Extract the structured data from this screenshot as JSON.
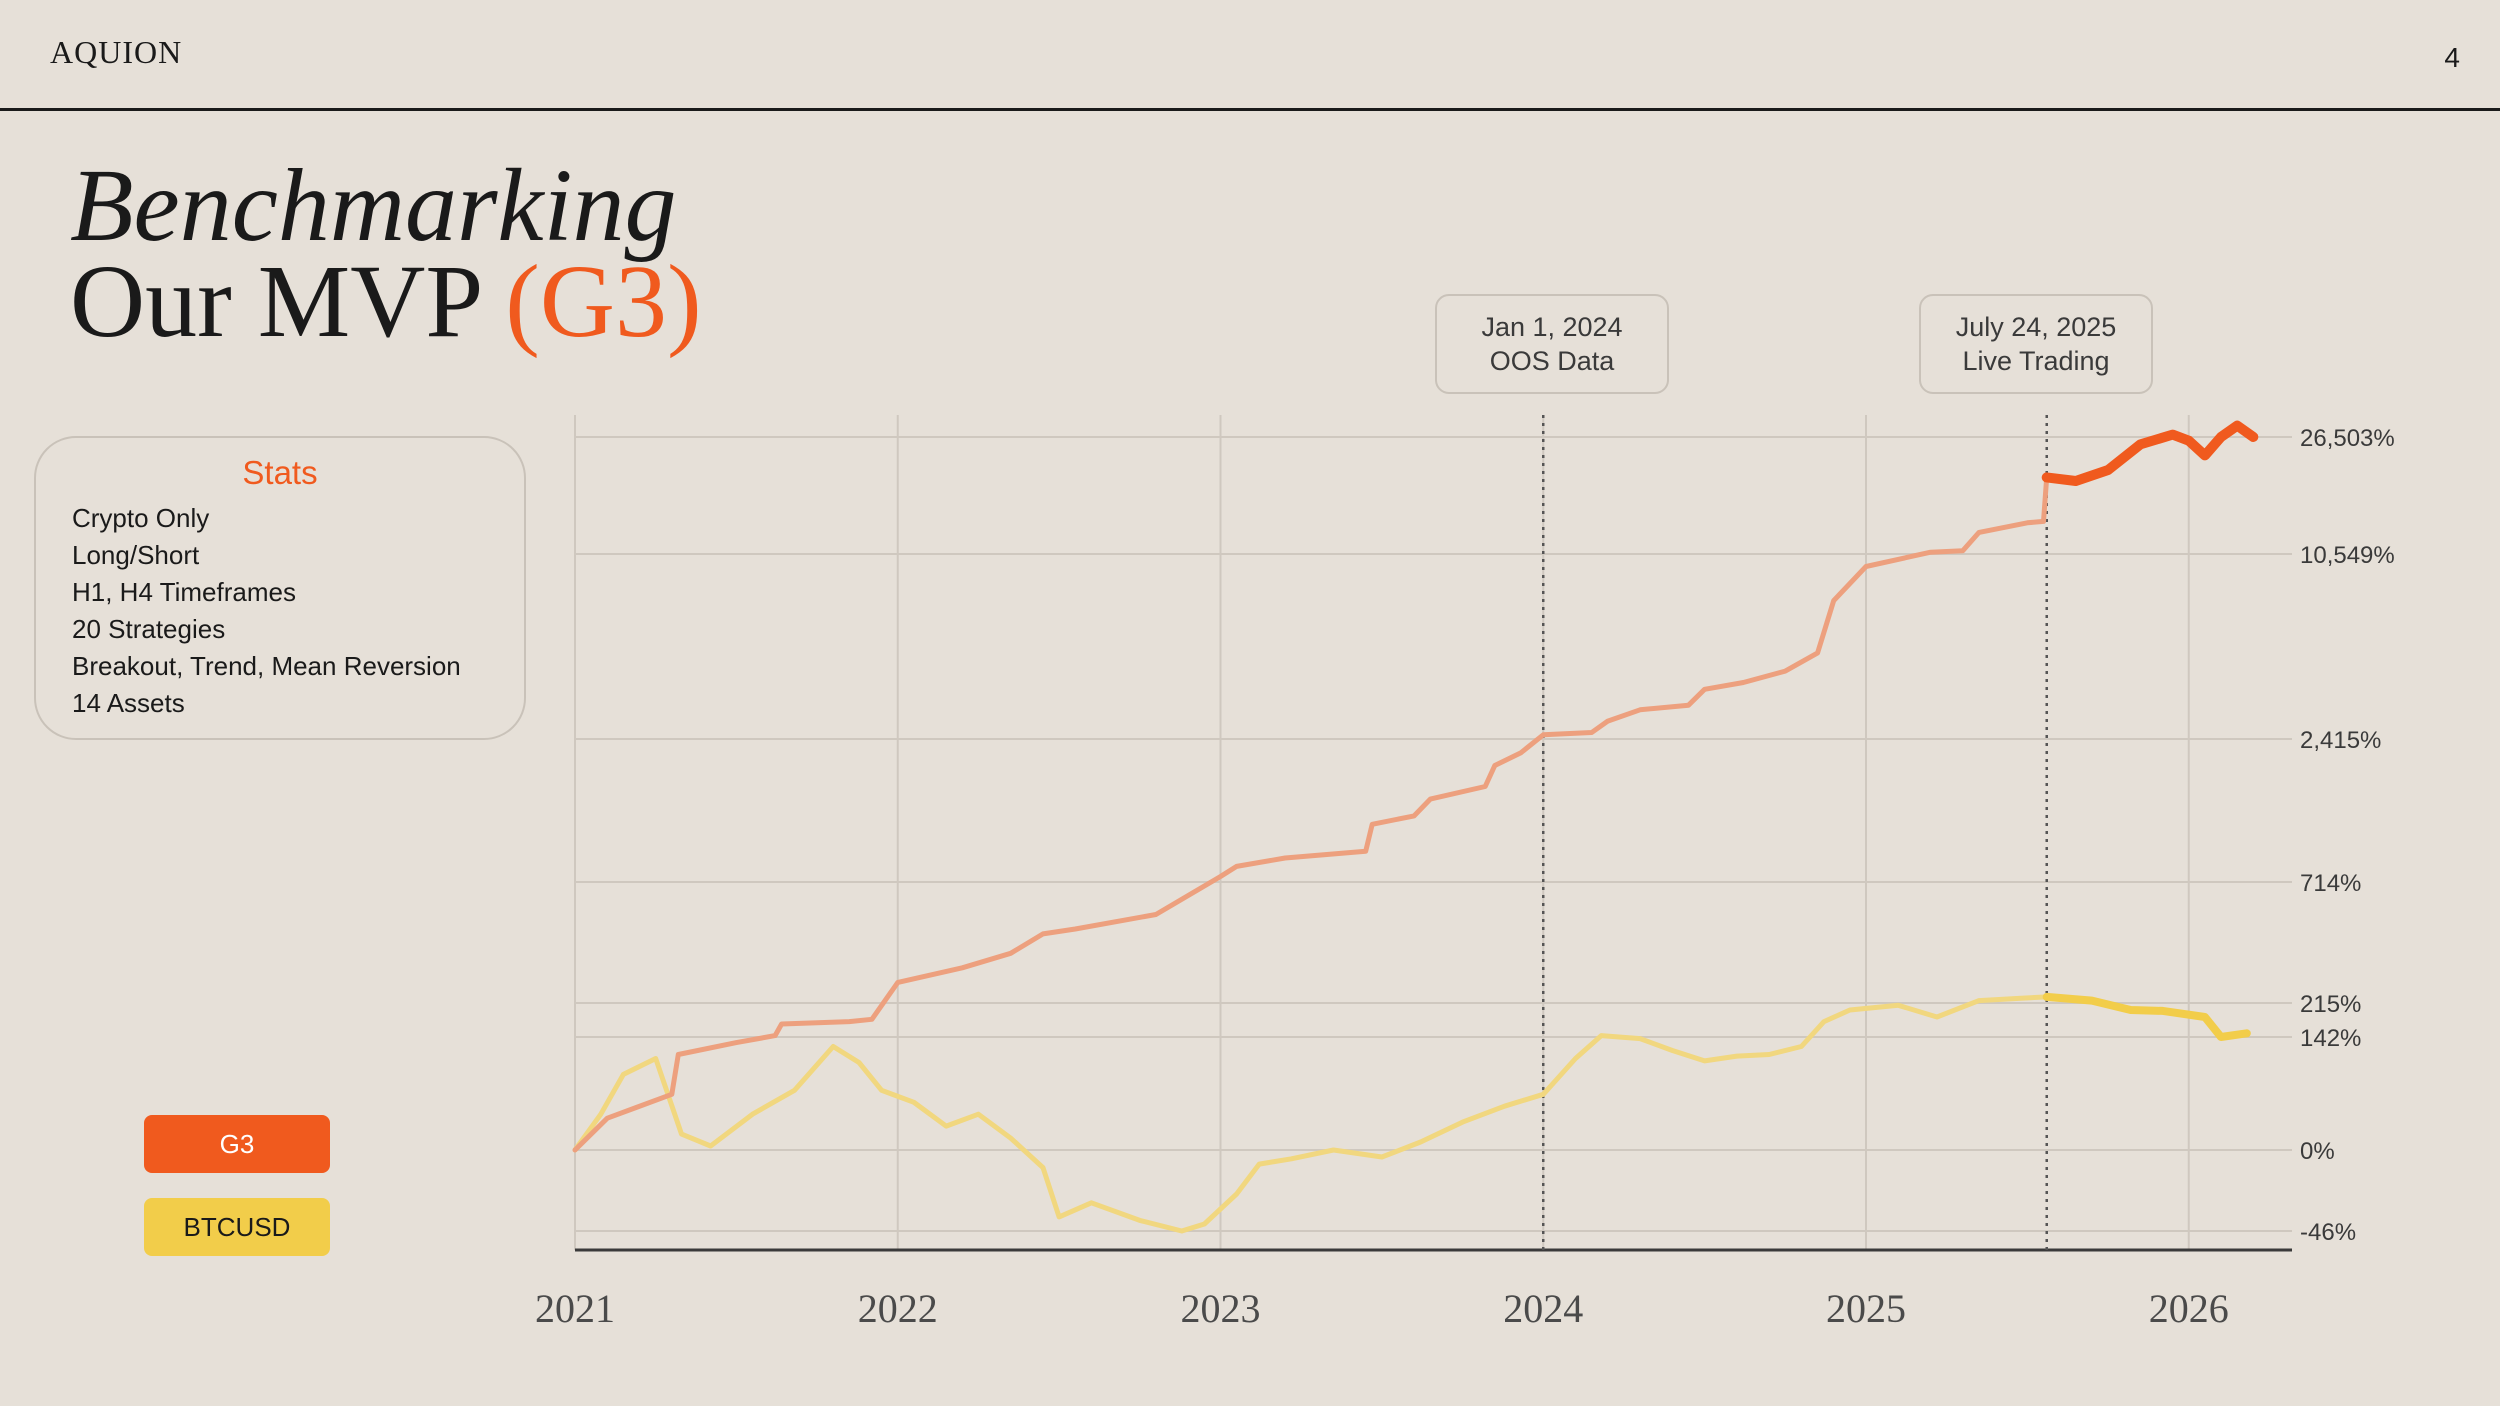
{
  "brand": "AQUION",
  "page_number": "4",
  "title": {
    "line1": "Benchmarking",
    "line2_prefix": "Our MVP ",
    "line2_accent": "(G3)"
  },
  "stats": {
    "heading": "Stats",
    "items": [
      "Crypto Only",
      "Long/Short",
      "H1, H4 Timeframes",
      "20 Strategies",
      "Breakout, Trend, Mean Reversion",
      "14 Assets"
    ]
  },
  "legend": [
    {
      "label": "G3",
      "color": "#f05a1e"
    },
    {
      "label": "BTCUSD",
      "color": "#f2cd4a"
    }
  ],
  "markers": [
    {
      "date": "Jan 1, 2024",
      "label": "OOS Data",
      "x": 2024.0
    },
    {
      "date": "July 24, 2025",
      "label": "Live Trading",
      "x": 2025.56
    }
  ],
  "colors": {
    "accent": "#f05a1e",
    "g3_light": "#eda07e",
    "btc": "#f2cd4a",
    "btc_light": "#f1d77f",
    "grid": "#cfc8bf",
    "axis": "#3a3a3a"
  },
  "chart_data": {
    "type": "line",
    "title": "",
    "xlabel": "",
    "ylabel": "",
    "x_ticks": [
      "2021",
      "2022",
      "2023",
      "2024",
      "2025",
      "2026"
    ],
    "x_tick_values": [
      2021,
      2022,
      2023,
      2024,
      2025,
      2026
    ],
    "xlim": [
      2021,
      2026.2
    ],
    "y_scale": "log-like",
    "y_ticks": [
      "26,503%",
      "10,549%",
      "2,415%",
      "714%",
      "215%",
      "142%",
      "0%",
      "-46%"
    ],
    "y_tick_values": [
      26503,
      10549,
      2415,
      714,
      215,
      142,
      0,
      -46
    ],
    "series": [
      {
        "name": "G3",
        "x": [
          2021.0,
          2021.1,
          2021.3,
          2021.32,
          2021.5,
          2021.62,
          2021.64,
          2021.85,
          2021.92,
          2022.0,
          2022.2,
          2022.35,
          2022.45,
          2022.55,
          2022.8,
          2023.0,
          2023.05,
          2023.2,
          2023.45,
          2023.47,
          2023.6,
          2023.65,
          2023.82,
          2023.85,
          2023.93,
          2024.0,
          2024.15,
          2024.2,
          2024.3,
          2024.45,
          2024.5,
          2024.62,
          2024.75,
          2024.85,
          2024.9,
          2025.0,
          2025.2,
          2025.3,
          2025.35,
          2025.5,
          2025.55,
          2025.56,
          2025.65,
          2025.75,
          2025.85,
          2025.95,
          2026.0,
          2026.05,
          2026.1,
          2026.15,
          2026.2
        ],
        "values": [
          0,
          40,
          70,
          120,
          135,
          145,
          170,
          175,
          180,
          300,
          360,
          420,
          500,
          520,
          580,
          780,
          900,
          1000,
          1080,
          1400,
          1500,
          1700,
          1850,
          2100,
          2250,
          2600,
          2700,
          3200,
          3700,
          3900,
          4600,
          4900,
          5400,
          6200,
          8500,
          10000,
          10800,
          11000,
          13500,
          14800,
          15000,
          21000,
          20500,
          22000,
          25500,
          27000,
          26000,
          24000,
          26503,
          29000,
          26503
        ],
        "live_from_x": 2025.56
      },
      {
        "name": "BTCUSD",
        "x": [
          2021.0,
          2021.08,
          2021.15,
          2021.25,
          2021.33,
          2021.42,
          2021.55,
          2021.68,
          2021.8,
          2021.88,
          2021.95,
          2022.05,
          2022.15,
          2022.25,
          2022.35,
          2022.45,
          2022.5,
          2022.6,
          2022.75,
          2022.88,
          2022.95,
          2023.05,
          2023.12,
          2023.22,
          2023.35,
          2023.5,
          2023.62,
          2023.75,
          2023.88,
          2024.0,
          2024.1,
          2024.18,
          2024.3,
          2024.4,
          2024.5,
          2024.6,
          2024.7,
          2024.8,
          2024.87,
          2024.95,
          2025.1,
          2025.22,
          2025.35,
          2025.48,
          2025.56,
          2025.7,
          2025.82,
          2025.92,
          2026.05,
          2026.1,
          2026.18
        ],
        "values": [
          0,
          45,
          95,
          115,
          20,
          5,
          45,
          75,
          130,
          110,
          75,
          60,
          30,
          45,
          15,
          -10,
          -38,
          -30,
          -40,
          -46,
          -42,
          -25,
          -8,
          -5,
          0,
          -4,
          10,
          35,
          55,
          70,
          115,
          145,
          140,
          125,
          112,
          118,
          120,
          130,
          175,
          200,
          210,
          185,
          225,
          235,
          240,
          225,
          200,
          198,
          185,
          142,
          150
        ],
        "live_from_x": 2025.56
      }
    ],
    "vertical_markers": [
      2024.0,
      2025.56
    ],
    "legend_position": "bottom-left"
  }
}
